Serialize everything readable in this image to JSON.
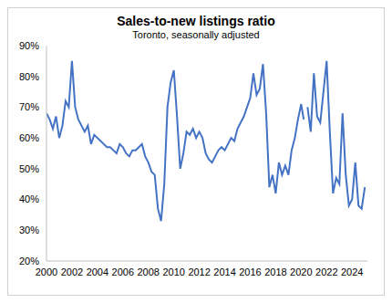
{
  "chart_data": {
    "type": "line",
    "title": "Sales-to-new listings ratio",
    "subtitle": "Toronto, seasonally adjusted",
    "color": "#4472c4",
    "grid": false,
    "xlim": [
      2000,
      2025.2
    ],
    "xticks": [
      2000,
      2002,
      2004,
      2006,
      2008,
      2010,
      2012,
      2014,
      2016,
      2018,
      2020,
      2022,
      2024
    ],
    "ylim": [
      20,
      90
    ],
    "yticks": [
      {
        "value": 20,
        "label": "20%"
      },
      {
        "value": 30,
        "label": "30%"
      },
      {
        "value": 40,
        "label": "40%"
      },
      {
        "value": 50,
        "label": "50%"
      },
      {
        "value": 60,
        "label": "60%"
      },
      {
        "value": 70,
        "label": "70%"
      },
      {
        "value": 80,
        "label": "80%"
      },
      {
        "value": 90,
        "label": "90%"
      }
    ],
    "x": [
      2000,
      2000.25,
      2000.5,
      2000.75,
      2001,
      2001.25,
      2001.5,
      2001.75,
      2002,
      2002.25,
      2002.5,
      2002.75,
      2003,
      2003.25,
      2003.5,
      2003.75,
      2004,
      2004.25,
      2004.5,
      2004.75,
      2005,
      2005.25,
      2005.5,
      2005.75,
      2006,
      2006.25,
      2006.5,
      2006.75,
      2007,
      2007.25,
      2007.5,
      2007.75,
      2008,
      2008.25,
      2008.5,
      2008.75,
      2009,
      2009.25,
      2009.5,
      2009.75,
      2010,
      2010.25,
      2010.5,
      2010.75,
      2011,
      2011.25,
      2011.5,
      2011.75,
      2012,
      2012.25,
      2012.5,
      2012.75,
      2013,
      2013.25,
      2013.5,
      2013.75,
      2014,
      2014.25,
      2014.5,
      2014.75,
      2015,
      2015.25,
      2015.5,
      2015.75,
      2016,
      2016.25,
      2016.5,
      2016.75,
      2017,
      2017.25,
      2017.5,
      2017.75,
      2018,
      2018.25,
      2018.5,
      2018.75,
      2019,
      2019.25,
      2019.5,
      2019.75,
      2020,
      2020.2,
      2020.3,
      2020.5,
      2020.75,
      2021,
      2021.25,
      2021.5,
      2021.75,
      2022,
      2022.25,
      2022.5,
      2022.75,
      2023,
      2023.25,
      2023.5,
      2023.75,
      2024,
      2024.25,
      2024.5,
      2024.75,
      2025
    ],
    "values": [
      68,
      66,
      63,
      67,
      60,
      64,
      72,
      70,
      85,
      70,
      66,
      64,
      62,
      64,
      58,
      61,
      60,
      59,
      58,
      57,
      57,
      56,
      55,
      58,
      57,
      55,
      54,
      56,
      56,
      57,
      58,
      54,
      52,
      49,
      48,
      37,
      33,
      45,
      70,
      78,
      82,
      67,
      50,
      55,
      62,
      61,
      63,
      60,
      62,
      60,
      55,
      53,
      52,
      54,
      56,
      57,
      56,
      58,
      60,
      59,
      63,
      65,
      67,
      70,
      73,
      81,
      74,
      76,
      84,
      68,
      44,
      48,
      42,
      52,
      48,
      51,
      48,
      56,
      60,
      66,
      71,
      66,
      null,
      70,
      62,
      81,
      67,
      65,
      75,
      85,
      62,
      42,
      47,
      45,
      68,
      48,
      38,
      40,
      52,
      38,
      37,
      44
    ]
  }
}
